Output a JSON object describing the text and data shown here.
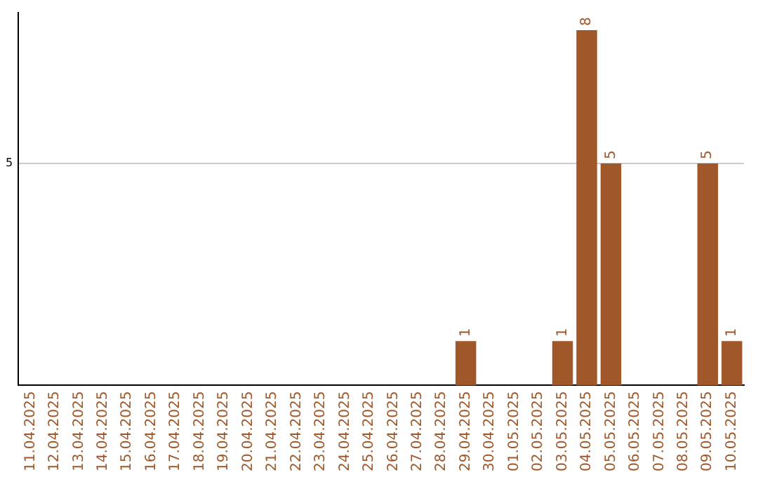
{
  "chart_data": {
    "type": "bar",
    "categories": [
      "11.04.2025",
      "12.04.2025",
      "13.04.2025",
      "14.04.2025",
      "15.04.2025",
      "16.04.2025",
      "17.04.2025",
      "18.04.2025",
      "19.04.2025",
      "20.04.2025",
      "21.04.2025",
      "22.04.2025",
      "23.04.2025",
      "24.04.2025",
      "25.04.2025",
      "26.04.2025",
      "27.04.2025",
      "28.04.2025",
      "29.04.2025",
      "30.04.2025",
      "01.05.2025",
      "02.05.2025",
      "03.05.2025",
      "04.05.2025",
      "05.05.2025",
      "06.05.2025",
      "07.05.2025",
      "08.05.2025",
      "09.05.2025",
      "10.05.2025"
    ],
    "values": [
      null,
      null,
      null,
      null,
      null,
      null,
      null,
      null,
      null,
      null,
      null,
      null,
      null,
      null,
      null,
      null,
      null,
      null,
      1,
      null,
      null,
      null,
      1,
      8,
      5,
      null,
      null,
      null,
      5,
      1
    ],
    "color": "#a0582a",
    "ylim": [
      0,
      8.4
    ],
    "yticks": [
      5
    ],
    "grid": "y",
    "data_labels": true,
    "legend": false
  }
}
